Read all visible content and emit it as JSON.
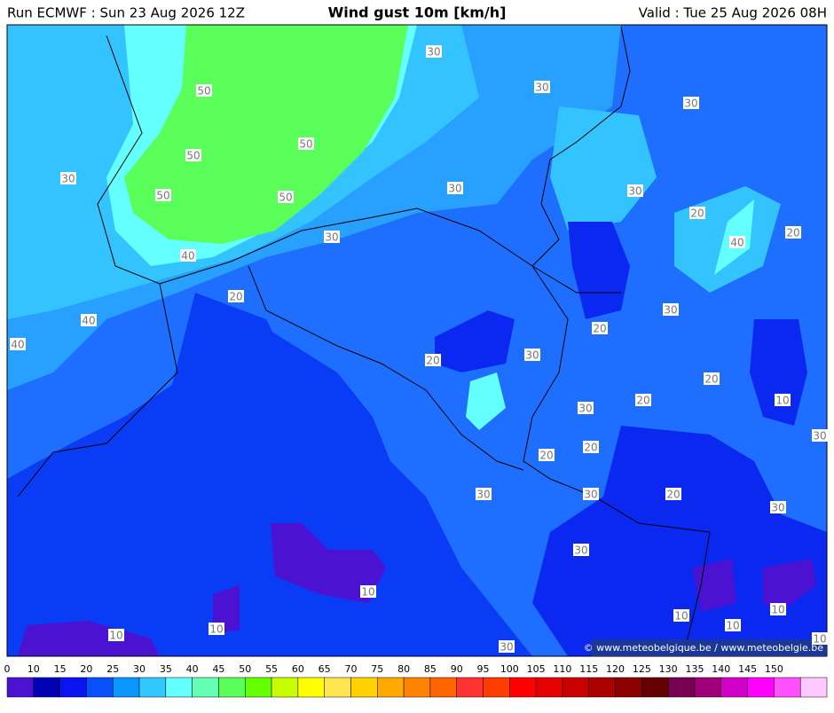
{
  "header": {
    "run": "Run ECMWF : Sun 23 Aug 2026 12Z",
    "title": "Wind gust 10m [km/h]",
    "valid": "Valid : Tue 25 Aug 2026 08H"
  },
  "map": {
    "contour_labels": [
      30,
      30,
      30,
      50,
      50,
      50,
      50,
      50,
      30,
      30,
      30,
      20,
      20,
      40,
      30,
      40,
      20,
      30,
      40,
      40,
      20,
      30,
      20,
      20,
      20,
      10,
      30,
      30,
      20,
      20,
      30,
      30,
      20,
      30,
      30,
      10,
      10,
      10,
      10,
      10,
      10,
      30,
      10
    ],
    "copyright": "© www.meteobelgique.be / www.meteobelgie.be"
  },
  "colorbar": {
    "labels": [
      0,
      10,
      15,
      20,
      25,
      30,
      35,
      40,
      45,
      50,
      55,
      60,
      65,
      70,
      75,
      80,
      85,
      90,
      95,
      100,
      105,
      110,
      115,
      120,
      125,
      130,
      135,
      140,
      145,
      150
    ],
    "colors": [
      "#4b12d2",
      "#0000b4",
      "#0a14f0",
      "#0a50ff",
      "#0a96ff",
      "#32c8ff",
      "#64ffff",
      "#64ffb4",
      "#5aff5a",
      "#64ff00",
      "#c8ff00",
      "#ffff00",
      "#ffe650",
      "#ffd200",
      "#ffaa00",
      "#ff8200",
      "#ff6400",
      "#ff3232",
      "#ff3c00",
      "#ff0000",
      "#e60000",
      "#c80000",
      "#aa0000",
      "#8c0000",
      "#640000",
      "#780050",
      "#a0007a",
      "#d200c8",
      "#ff00ff",
      "#ff50ff",
      "#ffc8ff"
    ]
  }
}
